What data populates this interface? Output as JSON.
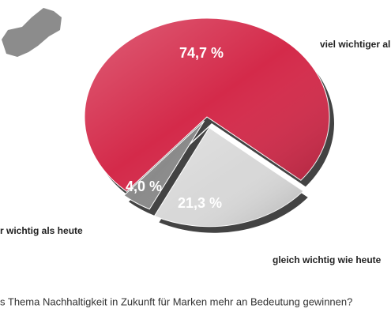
{
  "chart_data": {
    "type": "pie",
    "title": "s Thema Nachhaltigkeit in Zukunft für Marken mehr an Bedeutung gewinnen?",
    "categories": [
      "viel wichtiger al",
      "gleich wichtig wie heute",
      "r wichtig als heute"
    ],
    "values": [
      74.7,
      21.3,
      4.0
    ],
    "value_labels": [
      "74,7 %",
      "21,3 %",
      "4,0 %"
    ],
    "colors": [
      "#d42a4a",
      "#d8d8d8",
      "#8a8a8a"
    ]
  }
}
